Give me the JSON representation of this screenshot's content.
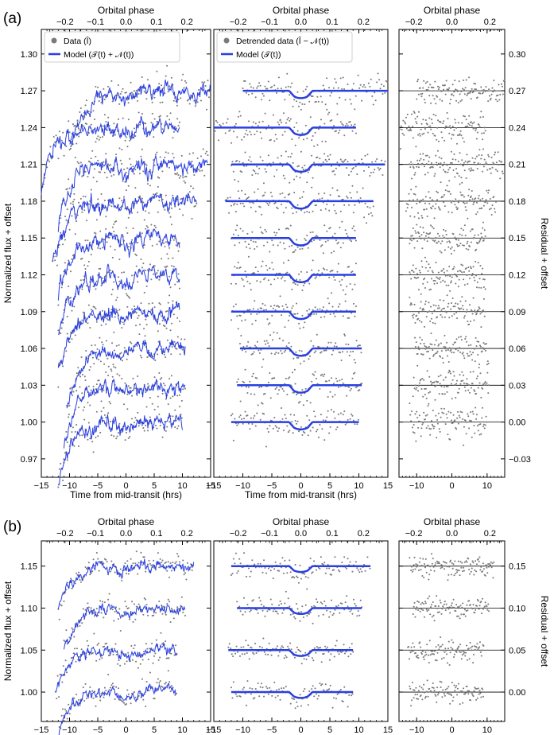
{
  "chart_data": {
    "type": "scatter",
    "colors": {
      "data": "#7a7a7a",
      "model": "#2a3fe0",
      "residual_line": "#000000"
    },
    "panel_a": {
      "label": "(a)",
      "offsets": [
        1.27,
        1.24,
        1.21,
        1.18,
        1.15,
        1.12,
        1.09,
        1.06,
        1.03,
        1.0
      ],
      "time_ranges": [
        [
          -10,
          15
        ],
        [
          -15,
          9.5
        ],
        [
          -12,
          14.5
        ],
        [
          -13,
          12.5
        ],
        [
          -12,
          9.5
        ],
        [
          -12,
          9.5
        ],
        [
          -12,
          9.5
        ],
        [
          -10.5,
          10.5
        ],
        [
          -11,
          10.5
        ],
        [
          -12,
          10
        ]
      ],
      "transit_depth": 0.006,
      "left": {
        "xlabel": "Time from mid-transit (hrs)",
        "ylabel": "Normalized flux + offset",
        "top_label": "Orbital phase",
        "xlim": [
          -15,
          15
        ],
        "ylim": [
          0.955,
          1.32
        ],
        "xticks": [
          "−15",
          "−10",
          "−5",
          "0",
          "5",
          "10",
          "15"
        ],
        "yticks": [
          "0.97",
          "1.00",
          "1.03",
          "1.06",
          "1.09",
          "1.12",
          "1.15",
          "1.18",
          "1.21",
          "1.24",
          "1.27",
          "1.30"
        ],
        "phase_ticks": [
          "−0.2",
          "−0.1",
          "0.0",
          "0.1",
          "0.2"
        ],
        "legend": [
          "Data (Î)",
          "Model (𝒯(t) + 𝒩(t))"
        ]
      },
      "middle": {
        "xlabel": "Time from mid-transit (hrs)",
        "top_label": "Orbital phase",
        "xlim": [
          -15,
          15
        ],
        "xticks": [
          "−15",
          "−10",
          "−5",
          "0",
          "5",
          "10",
          "15"
        ],
        "phase_ticks": [
          "−0.2",
          "−0.1",
          "0.0",
          "0.1",
          "0.2"
        ],
        "legend": [
          "Detrended data (Î − 𝒩(t))",
          "Model (𝒯(t))"
        ]
      },
      "right": {
        "top_label": "Orbital phase",
        "ylabel": "Residual + offset",
        "xlim": [
          -15,
          15
        ],
        "ylim": [
          -0.045,
          0.32
        ],
        "xticks": [
          "−10",
          "0",
          "10"
        ],
        "yticks": [
          "−0.03",
          "0.00",
          "0.03",
          "0.06",
          "0.09",
          "0.12",
          "0.15",
          "0.18",
          "0.21",
          "0.24",
          "0.27",
          "0.30"
        ],
        "phase_ticks": [
          "−0.2",
          "0.0",
          "0.2"
        ]
      }
    },
    "panel_b": {
      "label": "(b)",
      "offsets": [
        1.15,
        1.1,
        1.05,
        1.0
      ],
      "time_ranges": [
        [
          -12,
          12
        ],
        [
          -11,
          10.5
        ],
        [
          -12.5,
          9
        ],
        [
          -12,
          9
        ]
      ],
      "transit_depth": 0.007,
      "left": {
        "xlabel": "Time from mid-transit (hrs)",
        "ylabel": "Normalized flux + offset",
        "top_label": "Orbital phase",
        "xlim": [
          -15,
          15
        ],
        "ylim": [
          0.965,
          1.18
        ],
        "xticks": [
          "−15",
          "−10",
          "−5",
          "0",
          "5",
          "10",
          "15"
        ],
        "yticks": [
          "1.00",
          "1.05",
          "1.10",
          "1.15"
        ],
        "phase_ticks": [
          "−0.2",
          "−0.1",
          "0.0",
          "0.1",
          "0.2"
        ]
      },
      "middle": {
        "xlabel": "Time from mid-transit (hrs)",
        "top_label": "Orbital phase",
        "xlim": [
          -15,
          15
        ],
        "xticks": [
          "−15",
          "−10",
          "−5",
          "0",
          "5",
          "10",
          "15"
        ],
        "phase_ticks": [
          "−0.2",
          "−0.1",
          "0.0",
          "0.1",
          "0.2"
        ]
      },
      "right": {
        "top_label": "Orbital phase",
        "ylabel": "Residual + offset",
        "xlim": [
          -15,
          15
        ],
        "ylim": [
          -0.035,
          0.18
        ],
        "xticks": [
          "−10",
          "0",
          "10"
        ],
        "yticks": [
          "0.00",
          "0.05",
          "0.10",
          "0.15"
        ],
        "phase_ticks": [
          "−0.2",
          "0.0",
          "0.2"
        ]
      }
    }
  }
}
